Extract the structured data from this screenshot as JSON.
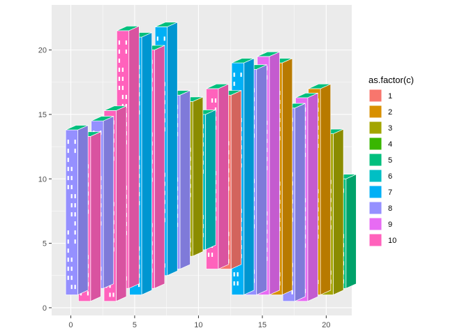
{
  "chart_data": {
    "type": "bar",
    "title": "",
    "xlabel": "",
    "ylabel": "",
    "xlim": [
      -1.5,
      22
    ],
    "ylim": [
      -0.6,
      23.5
    ],
    "x_ticks": [
      0,
      5,
      10,
      15,
      20
    ],
    "y_ticks": [
      0,
      5,
      10,
      15,
      20
    ],
    "grid": true,
    "legend": {
      "title": "as.factor(c)",
      "position": "right",
      "entries": [
        {
          "label": "1",
          "color": "#F8766D"
        },
        {
          "label": "2",
          "color": "#D89000"
        },
        {
          "label": "3",
          "color": "#A3A500"
        },
        {
          "label": "4",
          "color": "#39B600"
        },
        {
          "label": "5",
          "color": "#00BF7D"
        },
        {
          "label": "6",
          "color": "#00BFC4"
        },
        {
          "label": "7",
          "color": "#00B0F6"
        },
        {
          "label": "8",
          "color": "#9590FF"
        },
        {
          "label": "9",
          "color": "#E76BF3"
        },
        {
          "label": "10",
          "color": "#FF62BC"
        }
      ]
    },
    "buildings": [
      {
        "x": 0,
        "base": 1.0,
        "top": 13.8,
        "c": 8
      },
      {
        "x": 1,
        "base": 0.5,
        "top": 13.3,
        "c": 10
      },
      {
        "x": 2,
        "base": 1.5,
        "top": 14.5,
        "c": 8
      },
      {
        "x": 3,
        "base": 0.5,
        "top": 15.3,
        "c": 10
      },
      {
        "x": 4,
        "base": 1.5,
        "top": 21.5,
        "c": 10
      },
      {
        "x": 5,
        "base": 1.0,
        "top": 21.0,
        "c": 7
      },
      {
        "x": 6,
        "base": 1.5,
        "top": 20.0,
        "c": 10
      },
      {
        "x": 7,
        "base": 2.5,
        "top": 21.8,
        "c": 7
      },
      {
        "x": 8,
        "base": 3.0,
        "top": 16.5,
        "c": 8
      },
      {
        "x": 9,
        "base": 4.0,
        "top": 16.0,
        "c": 3
      },
      {
        "x": 10,
        "base": 4.5,
        "top": 15.0,
        "c": 6
      },
      {
        "x": 11,
        "base": 3.0,
        "top": 17.0,
        "c": 10
      },
      {
        "x": 12,
        "base": 3.0,
        "top": 16.5,
        "c": 1
      },
      {
        "x": 13,
        "base": 1.0,
        "top": 19.0,
        "c": 7
      },
      {
        "x": 14,
        "base": 1.0,
        "top": 18.5,
        "c": 8
      },
      {
        "x": 15,
        "base": 1.0,
        "top": 19.5,
        "c": 9
      },
      {
        "x": 16,
        "base": 1.0,
        "top": 19.0,
        "c": 2
      },
      {
        "x": 17,
        "base": 0.5,
        "top": 15.5,
        "c": 8
      },
      {
        "x": 18,
        "base": 0.5,
        "top": 16.3,
        "c": 9
      },
      {
        "x": 19,
        "base": 1.0,
        "top": 17.0,
        "c": 2
      },
      {
        "x": 20,
        "base": 1.0,
        "top": 13.5,
        "c": 3
      },
      {
        "x": 21,
        "base": 1.5,
        "top": 10.0,
        "c": 5
      }
    ]
  }
}
